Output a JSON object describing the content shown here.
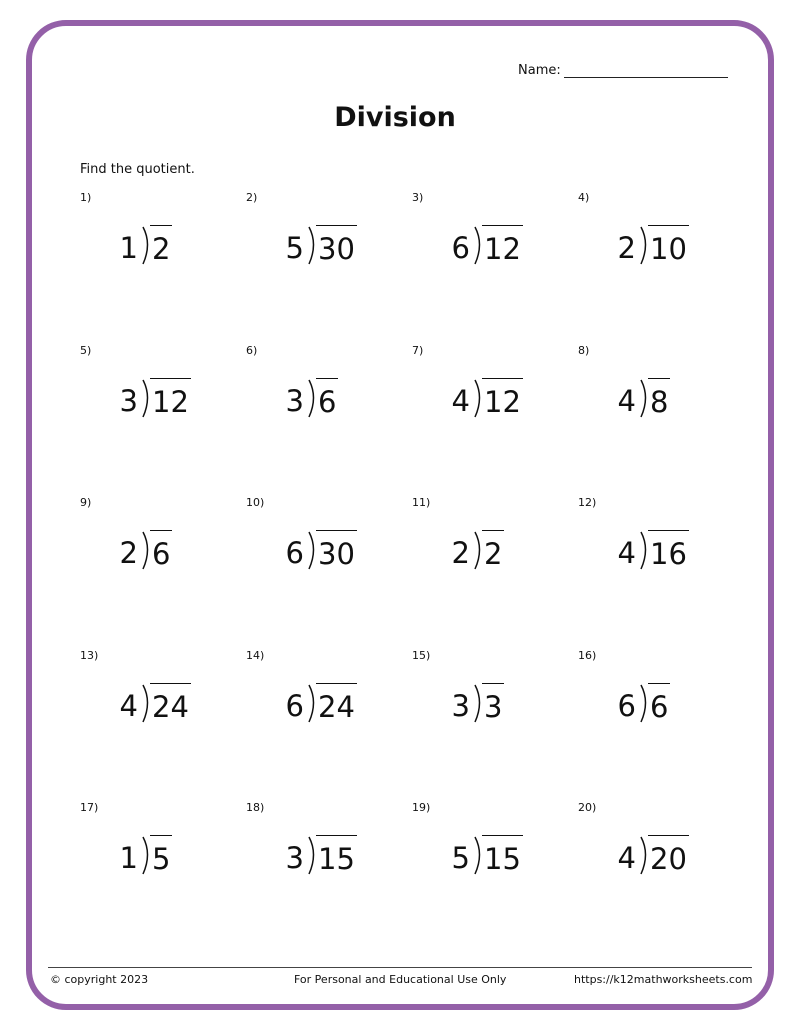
{
  "header": {
    "name_label": "Name:",
    "title": "Division",
    "instructions": "Find the quotient."
  },
  "accent_color": "#9460a8",
  "problems": [
    {
      "n": "1)",
      "divisor": "1",
      "dividend": "2"
    },
    {
      "n": "2)",
      "divisor": "5",
      "dividend": "30"
    },
    {
      "n": "3)",
      "divisor": "6",
      "dividend": "12"
    },
    {
      "n": "4)",
      "divisor": "2",
      "dividend": "10"
    },
    {
      "n": "5)",
      "divisor": "3",
      "dividend": "12"
    },
    {
      "n": "6)",
      "divisor": "3",
      "dividend": "6"
    },
    {
      "n": "7)",
      "divisor": "4",
      "dividend": "12"
    },
    {
      "n": "8)",
      "divisor": "4",
      "dividend": "8"
    },
    {
      "n": "9)",
      "divisor": "2",
      "dividend": "6"
    },
    {
      "n": "10)",
      "divisor": "6",
      "dividend": "30"
    },
    {
      "n": "11)",
      "divisor": "2",
      "dividend": "2"
    },
    {
      "n": "12)",
      "divisor": "4",
      "dividend": "16"
    },
    {
      "n": "13)",
      "divisor": "4",
      "dividend": "24"
    },
    {
      "n": "14)",
      "divisor": "6",
      "dividend": "24"
    },
    {
      "n": "15)",
      "divisor": "3",
      "dividend": "3"
    },
    {
      "n": "16)",
      "divisor": "6",
      "dividend": "6"
    },
    {
      "n": "17)",
      "divisor": "1",
      "dividend": "5"
    },
    {
      "n": "18)",
      "divisor": "3",
      "dividend": "15"
    },
    {
      "n": "19)",
      "divisor": "5",
      "dividend": "15"
    },
    {
      "n": "20)",
      "divisor": "4",
      "dividend": "20"
    }
  ],
  "footer": {
    "copyright": "© copyright 2023",
    "notice": "For Personal and Educational Use Only",
    "url": "https://k12mathworksheets.com"
  }
}
